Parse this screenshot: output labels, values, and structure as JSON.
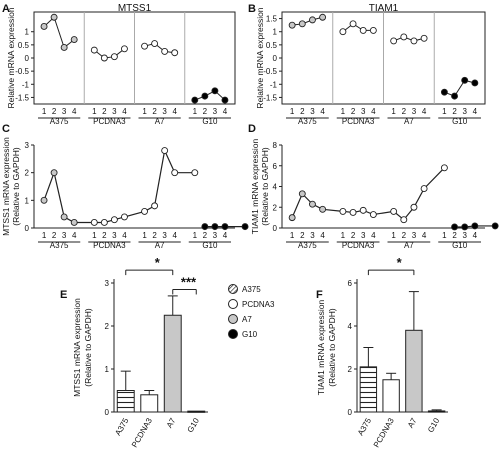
{
  "panel_letters": {
    "a": "A",
    "b": "B",
    "c": "C",
    "d": "D",
    "e": "E",
    "f": "F"
  },
  "legend": {
    "title": "",
    "items": [
      {
        "label": "A375",
        "pattern": "stripes"
      },
      {
        "label": "PCDNA3",
        "pattern": "white"
      },
      {
        "label": "A7",
        "pattern": "gray"
      },
      {
        "label": "G10",
        "pattern": "black"
      }
    ]
  },
  "colors": {
    "line": "#222222",
    "gray_fill": "#c8c8c8",
    "black": "#000000",
    "separator": "#aaaaaa"
  },
  "chart_data": [
    {
      "id": "A",
      "type": "line",
      "title": "MTSS1",
      "ylabel": "Relative mRNA expression",
      "ylim": [
        -1.75,
        1.75
      ],
      "yticks": [
        "1",
        "0.5",
        "0",
        "-0.5",
        "-1",
        "-1.5"
      ],
      "ytick_values": [
        1,
        0.5,
        0,
        -0.5,
        -1,
        -1.5
      ],
      "x_ticks": [
        "1",
        "2",
        "3",
        "4"
      ],
      "groups": [
        "A375",
        "PCDNA3",
        "A7",
        "G10"
      ],
      "series": [
        {
          "values": [
            1.2,
            1.55,
            0.4,
            0.7
          ],
          "marker": "gray"
        },
        {
          "values": [
            0.3,
            0.0,
            0.05,
            0.35
          ],
          "marker": "white"
        },
        {
          "values": [
            0.45,
            0.55,
            0.25,
            0.2
          ],
          "marker": "white"
        },
        {
          "values": [
            -1.6,
            -1.45,
            -1.25,
            -1.6
          ],
          "marker": "black"
        }
      ],
      "grid": false,
      "boxed": true
    },
    {
      "id": "B",
      "type": "line",
      "title": "TIAM1",
      "ylabel": "Relative mRNA expression",
      "ylim": [
        -1.75,
        1.75
      ],
      "yticks": [
        "1.5",
        "1",
        "0.5",
        "0",
        "-0.5",
        "-1",
        "-1.5"
      ],
      "ytick_values": [
        1.5,
        1,
        0.5,
        0,
        -0.5,
        -1,
        -1.5
      ],
      "x_ticks": [
        "1",
        "2",
        "3",
        "4"
      ],
      "groups": [
        "A375",
        "PCDNA3",
        "A7",
        "G10"
      ],
      "series": [
        {
          "values": [
            1.25,
            1.3,
            1.45,
            1.55
          ],
          "marker": "gray"
        },
        {
          "values": [
            1.0,
            1.3,
            1.05,
            1.05
          ],
          "marker": "white"
        },
        {
          "values": [
            0.65,
            0.8,
            0.65,
            0.75
          ],
          "marker": "white"
        },
        {
          "values": [
            -1.3,
            -1.45,
            -0.85,
            -0.95
          ],
          "marker": "black"
        }
      ],
      "grid": false,
      "boxed": true
    },
    {
      "id": "C",
      "type": "line",
      "ylabel": "MTSS1 mRNA expression",
      "ylabel2": "(Relative to GAPDH)",
      "ylim": [
        0,
        3
      ],
      "yticks": [
        "0",
        "1",
        "2",
        "3"
      ],
      "ytick_values": [
        0,
        1,
        2,
        3
      ],
      "x_ticks": [
        "1",
        "2",
        "3",
        "4"
      ],
      "groups": [
        "A375",
        "PCDNA3",
        "A7",
        "G10"
      ],
      "series_values": [
        1.0,
        2.0,
        0.4,
        0.2,
        0.2,
        0.2,
        0.3,
        0.4,
        0.6,
        0.8,
        2.8,
        2.0,
        2.0,
        0.05,
        0.05,
        0.05,
        0.05
      ],
      "markers": [
        "gray",
        "gray",
        "gray",
        "gray",
        "white",
        "white",
        "white",
        "white",
        "white",
        "white",
        "white",
        "white",
        "white",
        "black",
        "black",
        "black",
        "black"
      ],
      "grid": false,
      "boxed": false
    },
    {
      "id": "D",
      "type": "line",
      "ylabel": "TIAM1 mRNA expression",
      "ylabel2": "(Relative to GAPDH)",
      "ylim": [
        0,
        8
      ],
      "yticks": [
        "0",
        "2",
        "4",
        "6",
        "8"
      ],
      "ytick_values": [
        0,
        2,
        4,
        6,
        8
      ],
      "x_ticks": [
        "1",
        "2",
        "3",
        "4"
      ],
      "groups": [
        "A375",
        "PCDNA3",
        "A7",
        "G10"
      ],
      "series_values": [
        1.0,
        3.3,
        2.3,
        1.8,
        1.6,
        1.5,
        1.7,
        1.3,
        1.6,
        0.8,
        2.0,
        3.8,
        5.8,
        0.1,
        0.1,
        0.2,
        0.2
      ],
      "markers": [
        "gray",
        "gray",
        "gray",
        "gray",
        "white",
        "white",
        "white",
        "white",
        "white",
        "white",
        "white",
        "white",
        "white",
        "black",
        "black",
        "black",
        "black"
      ],
      "grid": false,
      "boxed": false
    },
    {
      "id": "E",
      "type": "bar",
      "ylabel": "MTSS1 mRNA expression",
      "ylabel2": "(Relative to GAPDH)",
      "ylim": [
        0,
        3
      ],
      "yticks": [
        "0",
        "1",
        "2",
        "3"
      ],
      "ytick_values": [
        0,
        1,
        2,
        3
      ],
      "categories": [
        "A375",
        "PCDNA3",
        "A7",
        "G10"
      ],
      "values": [
        0.5,
        0.4,
        2.25,
        0.02
      ],
      "errors": [
        0.45,
        0.1,
        0.45,
        0.02
      ],
      "fills": [
        "stripes",
        "white",
        "gray",
        "black"
      ],
      "significance": [
        {
          "label": "*",
          "from": 0,
          "to": 2,
          "level": 3.3
        },
        {
          "label": "***",
          "from": 2,
          "to": 3,
          "level": 2.85
        }
      ]
    },
    {
      "id": "F",
      "type": "bar",
      "ylabel": "TIAM1 mRNA expression",
      "ylabel2": "(Relative to GAPDH)",
      "ylim": [
        0,
        6
      ],
      "yticks": [
        "0",
        "2",
        "4",
        "6"
      ],
      "ytick_values": [
        0,
        2,
        4,
        6
      ],
      "categories": [
        "A375",
        "PCDNA3",
        "A7",
        "G10"
      ],
      "values": [
        2.1,
        1.5,
        3.8,
        0.05
      ],
      "errors": [
        0.9,
        0.3,
        1.8,
        0.05
      ],
      "fills": [
        "stripes",
        "white",
        "gray",
        "black"
      ],
      "significance": [
        {
          "label": "*",
          "from": 0,
          "to": 2,
          "level": 6.6
        }
      ]
    }
  ]
}
